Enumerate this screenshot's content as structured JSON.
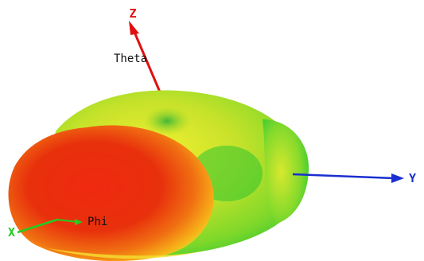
{
  "axes": {
    "z": {
      "label": "Z",
      "color": "#e01010"
    },
    "y": {
      "label": "Y",
      "color": "#1a2fd0"
    },
    "x": {
      "label": "X",
      "color": "#22cc22"
    }
  },
  "angle_labels": {
    "theta": "Theta",
    "phi": "Phi"
  },
  "pattern": {
    "colormap": [
      "#e01010",
      "#ff9a00",
      "#d8e800",
      "#22cc22"
    ]
  }
}
